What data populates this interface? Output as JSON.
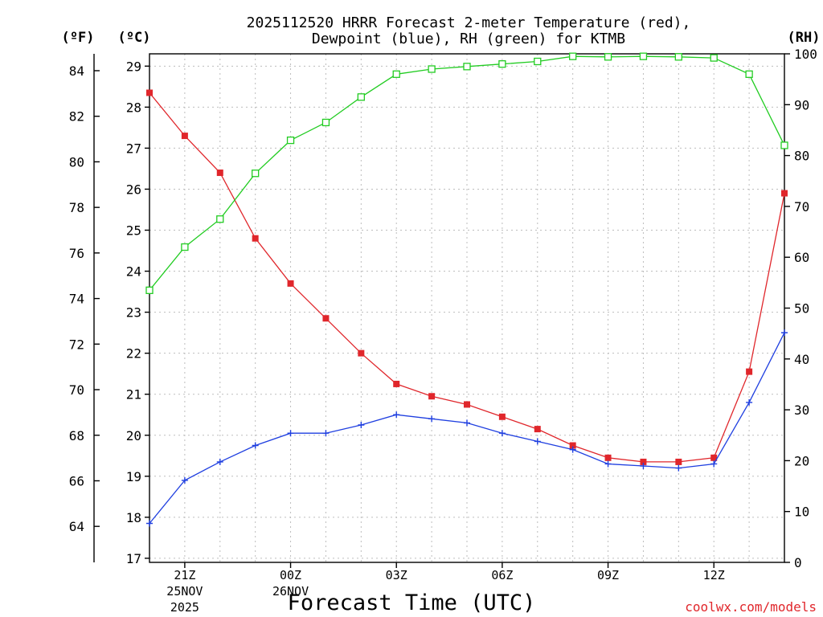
{
  "title": {
    "line1": "2025112520 HRRR Forecast 2-meter Temperature (red),",
    "line2": "Dewpoint (blue), RH (green) for KTMB"
  },
  "units": {
    "fahrenheit": "(ºF)",
    "celsius": "(ºC)",
    "rh": "(RH)"
  },
  "x_axis": {
    "title": "Forecast Time (UTC)"
  },
  "credit": "coolwx.com/models",
  "colors": {
    "temperature": "#e0262b",
    "dewpoint": "#1f3fe0",
    "rh": "#22cc22"
  },
  "chart_data": {
    "type": "line",
    "title": "2025112520 HRRR Forecast 2-meter Temperature (red), Dewpoint (blue), RH (green) for KTMB",
    "xlabel": "Forecast Time (UTC)",
    "ylabel": "Temperature (ºC)",
    "ylim": [
      16.9,
      29.3
    ],
    "y_fahrenheit_ticks": [
      "64",
      "66",
      "68",
      "70",
      "72",
      "74",
      "76",
      "78",
      "80",
      "82",
      "84"
    ],
    "y_celsius_ticks": [
      "17",
      "18",
      "19",
      "20",
      "21",
      "22",
      "23",
      "24",
      "25",
      "26",
      "27",
      "28",
      "29"
    ],
    "y_rh_ticks": [
      "0",
      "10",
      "20",
      "30",
      "40",
      "50",
      "60",
      "70",
      "80",
      "90",
      "100"
    ],
    "rh_lim": [
      0,
      100
    ],
    "x": [
      20,
      21,
      22,
      23,
      24,
      25,
      26,
      27,
      28,
      29,
      30,
      31,
      32,
      33,
      34,
      35,
      36,
      37,
      38
    ],
    "x_ticks": [
      {
        "x": 21,
        "line1": "21Z",
        "line2": "25NOV",
        "line3": "2025"
      },
      {
        "x": 24,
        "line1": "00Z",
        "line2": "26NOV",
        "line3": ""
      },
      {
        "x": 27,
        "line1": "03Z",
        "line2": "",
        "line3": ""
      },
      {
        "x": 30,
        "line1": "06Z",
        "line2": "",
        "line3": ""
      },
      {
        "x": 33,
        "line1": "09Z",
        "line2": "",
        "line3": ""
      },
      {
        "x": 36,
        "line1": "12Z",
        "line2": "",
        "line3": ""
      }
    ],
    "series": [
      {
        "name": "Temperature",
        "axis": "celsius",
        "marker": "square-filled",
        "values": [
          28.35,
          27.3,
          26.4,
          24.8,
          23.7,
          22.85,
          22.0,
          21.25,
          20.95,
          20.75,
          20.45,
          20.15,
          19.75,
          19.45,
          19.35,
          19.35,
          19.45,
          21.55,
          25.9
        ]
      },
      {
        "name": "Dewpoint",
        "axis": "celsius",
        "marker": "plus",
        "values": [
          17.85,
          18.9,
          19.35,
          19.75,
          20.05,
          20.05,
          20.25,
          20.5,
          20.4,
          20.3,
          20.05,
          19.85,
          19.65,
          19.3,
          19.25,
          19.2,
          19.3,
          20.8,
          22.5
        ]
      },
      {
        "name": "RH",
        "axis": "rh",
        "marker": "square-open",
        "values": [
          53.5,
          62.0,
          67.5,
          76.5,
          83.0,
          86.5,
          91.5,
          96.0,
          97.0,
          97.5,
          98.0,
          98.5,
          99.5,
          99.4,
          99.5,
          99.4,
          99.2,
          96.0,
          82.0
        ]
      }
    ]
  }
}
